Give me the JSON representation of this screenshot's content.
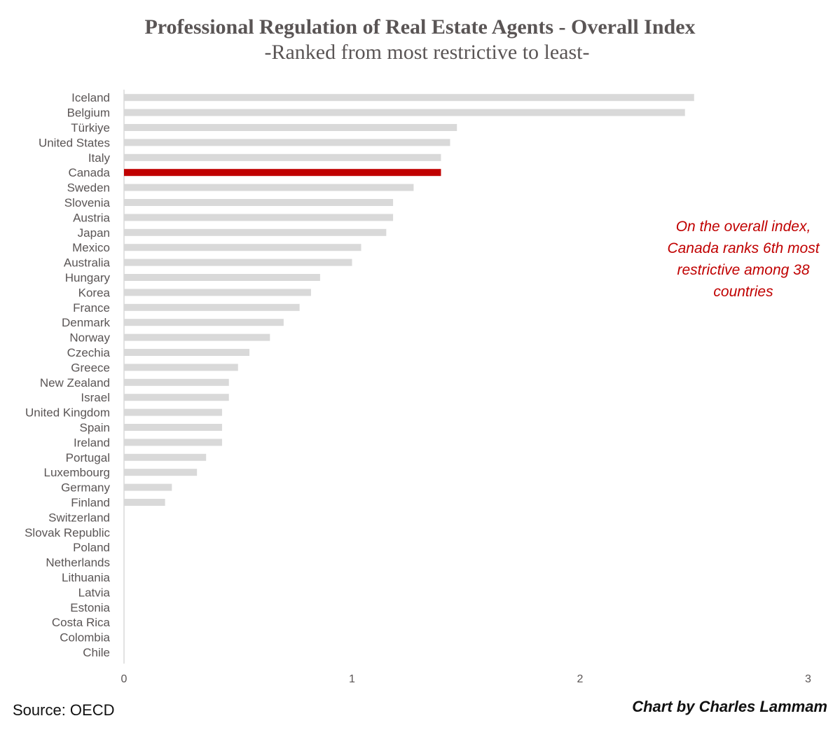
{
  "chart_data": {
    "type": "bar",
    "orientation": "horizontal",
    "title": "Professional Regulation of Real Estate Agents - Overall Index",
    "subtitle": "-Ranked from most restrictive to least-",
    "categories": [
      "Iceland",
      "Belgium",
      "Türkiye",
      "United States",
      "Italy",
      "Canada",
      "Sweden",
      "Slovenia",
      "Austria",
      "Japan",
      "Mexico",
      "Australia",
      "Hungary",
      "Korea",
      "France",
      "Denmark",
      "Norway",
      "Czechia",
      "Greece",
      "New Zealand",
      "Israel",
      "United Kingdom",
      "Spain",
      "Ireland",
      "Portugal",
      "Luxembourg",
      "Germany",
      "Finland",
      "Switzerland",
      "Slovak Republic",
      "Poland",
      "Netherlands",
      "Lithuania",
      "Latvia",
      "Estonia",
      "Costa Rica",
      "Colombia",
      "Chile"
    ],
    "values": [
      2.5,
      2.46,
      1.46,
      1.43,
      1.39,
      1.39,
      1.27,
      1.18,
      1.18,
      1.15,
      1.04,
      1.0,
      0.86,
      0.82,
      0.77,
      0.7,
      0.64,
      0.55,
      0.5,
      0.46,
      0.46,
      0.43,
      0.43,
      0.43,
      0.36,
      0.32,
      0.21,
      0.18,
      0,
      0,
      0,
      0,
      0,
      0,
      0,
      0,
      0,
      0
    ],
    "highlight": "Canada",
    "xlim": [
      0,
      3
    ],
    "xticks": [
      "0",
      "1",
      "2",
      "3"
    ],
    "grid": false,
    "colors": {
      "bar": "#d9d9d9",
      "highlight": "#c00000",
      "axis": "#d9d9d9",
      "label": "#5a5555"
    }
  },
  "annotation": "On the overall index, Canada ranks 6th most restrictive among 38 countries",
  "source": "Source: OECD",
  "credit": "Chart by Charles Lammam"
}
